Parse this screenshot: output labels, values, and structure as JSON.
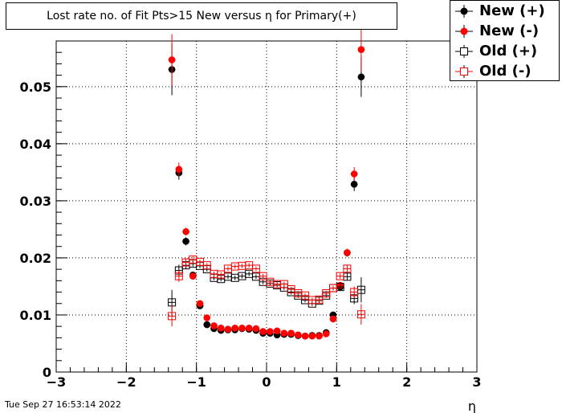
{
  "chart_data": {
    "type": "scatter",
    "title": "Lost rate no. of Fit Pts>15 New versus η for Primary(+)",
    "xlabel": "η",
    "ylabel": "",
    "xlim": [
      -3,
      3
    ],
    "ylim": [
      0,
      0.058
    ],
    "xticks": [
      -3,
      -2,
      -1,
      0,
      1,
      2,
      3
    ],
    "xtick_labels": [
      "−3",
      "−2",
      "−1",
      "0",
      "1",
      "2",
      "3"
    ],
    "yticks": [
      0,
      0.01,
      0.02,
      0.03,
      0.04,
      0.05
    ],
    "ytick_labels": [
      "0",
      "0.01",
      "0.02",
      "0.03",
      "0.04",
      "0.05"
    ],
    "grid": true,
    "legend_position": "top-right",
    "x": [
      -1.35,
      -1.25,
      -1.15,
      -1.05,
      -0.95,
      -0.85,
      -0.75,
      -0.65,
      -0.55,
      -0.45,
      -0.35,
      -0.25,
      -0.15,
      -0.05,
      0.05,
      0.15,
      0.25,
      0.35,
      0.45,
      0.55,
      0.65,
      0.75,
      0.85,
      0.95,
      1.05,
      1.15,
      1.25,
      1.35
    ],
    "series": [
      {
        "name": "New (+)",
        "marker": "filled-circle",
        "color": "#000000",
        "values": [
          0.053,
          0.0349,
          0.0229,
          0.017,
          0.0116,
          0.0083,
          0.0076,
          0.0073,
          0.0074,
          0.0074,
          0.0076,
          0.0075,
          0.0073,
          0.0068,
          0.0068,
          0.0065,
          0.0066,
          0.0066,
          0.0064,
          0.0063,
          0.0064,
          0.0064,
          0.0069,
          0.01,
          0.0149,
          0.0209,
          0.0329,
          0.0517
        ],
        "errors": [
          0.0045,
          0.0012,
          0.0007,
          0.0005,
          0.0004,
          0.0003,
          0.0003,
          0.0003,
          0.0003,
          0.0003,
          0.0003,
          0.0003,
          0.0003,
          0.0003,
          0.0003,
          0.0003,
          0.0003,
          0.0003,
          0.0003,
          0.0003,
          0.0003,
          0.0003,
          0.0003,
          0.0004,
          0.0005,
          0.0007,
          0.0012,
          0.0035
        ]
      },
      {
        "name": "New (-)",
        "marker": "filled-circle",
        "color": "#ff0000",
        "values": [
          0.0547,
          0.0355,
          0.0246,
          0.0168,
          0.012,
          0.0095,
          0.0081,
          0.0077,
          0.0075,
          0.0077,
          0.0077,
          0.0077,
          0.0076,
          0.0071,
          0.0071,
          0.0072,
          0.0068,
          0.0068,
          0.0065,
          0.0063,
          0.0063,
          0.0063,
          0.0067,
          0.0093,
          0.0152,
          0.0209,
          0.0347,
          0.0565
        ],
        "errors": [
          0.0045,
          0.0012,
          0.0007,
          0.0005,
          0.0004,
          0.0003,
          0.0003,
          0.0003,
          0.0003,
          0.0003,
          0.0003,
          0.0003,
          0.0003,
          0.0003,
          0.0003,
          0.0003,
          0.0003,
          0.0003,
          0.0003,
          0.0003,
          0.0003,
          0.0003,
          0.0003,
          0.0004,
          0.0005,
          0.0007,
          0.0012,
          0.0038
        ]
      },
      {
        "name": "Old (+)",
        "marker": "open-square",
        "color": "#000000",
        "values": [
          0.0122,
          0.0178,
          0.0187,
          0.019,
          0.0186,
          0.018,
          0.0165,
          0.0163,
          0.0167,
          0.0165,
          0.0168,
          0.0172,
          0.0167,
          0.0158,
          0.0155,
          0.0152,
          0.0148,
          0.014,
          0.0134,
          0.0126,
          0.012,
          0.0125,
          0.0134,
          0.0147,
          0.0149,
          0.0167,
          0.0129,
          0.0144
        ],
        "errors": [
          0.0022,
          0.001,
          0.0006,
          0.0005,
          0.0004,
          0.0004,
          0.0004,
          0.0004,
          0.0004,
          0.0004,
          0.0004,
          0.0004,
          0.0004,
          0.0004,
          0.0004,
          0.0004,
          0.0004,
          0.0004,
          0.0004,
          0.0004,
          0.0004,
          0.0004,
          0.0004,
          0.0004,
          0.0005,
          0.0006,
          0.001,
          0.0022
        ]
      },
      {
        "name": "Old (-)",
        "marker": "open-square",
        "color": "#ff0000",
        "values": [
          0.0098,
          0.0168,
          0.0192,
          0.0197,
          0.0193,
          0.0187,
          0.0172,
          0.0171,
          0.0181,
          0.0185,
          0.0186,
          0.0187,
          0.0181,
          0.0168,
          0.0158,
          0.0154,
          0.0154,
          0.0145,
          0.0138,
          0.0134,
          0.0126,
          0.0127,
          0.0138,
          0.0147,
          0.0168,
          0.0181,
          0.014,
          0.0101
        ],
        "errors": [
          0.0018,
          0.001,
          0.0006,
          0.0005,
          0.0004,
          0.0004,
          0.0004,
          0.0004,
          0.0004,
          0.0004,
          0.0004,
          0.0004,
          0.0004,
          0.0004,
          0.0004,
          0.0004,
          0.0004,
          0.0004,
          0.0004,
          0.0004,
          0.0004,
          0.0004,
          0.0004,
          0.0004,
          0.0005,
          0.0006,
          0.001,
          0.0018
        ]
      }
    ]
  },
  "footer": {
    "timestamp": "Tue Sep 27 16:53:14 2022"
  }
}
